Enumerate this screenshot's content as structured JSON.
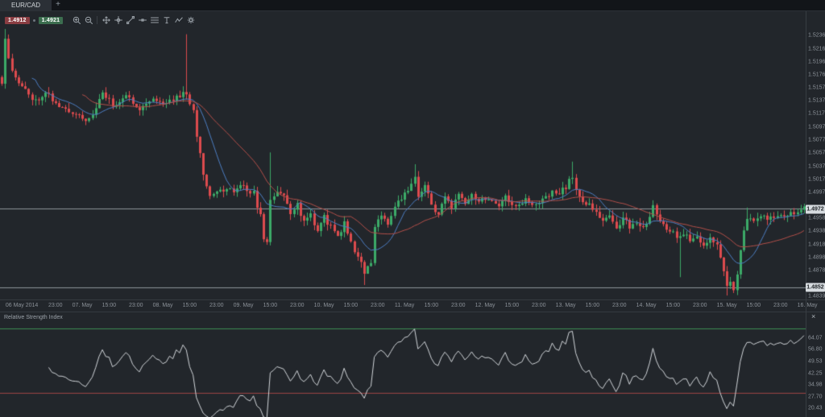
{
  "window": {
    "tab_label": "EUR/CAD",
    "new_tab_label": "+"
  },
  "toolbar": {
    "bid": "1.4912",
    "ask": "1.4921",
    "icons": [
      "zoom-in",
      "zoom-out",
      "|",
      "pan",
      "crosshair",
      "trendline",
      "horizontal-line",
      "fibonacci",
      "text-tool",
      "indicators",
      "settings"
    ]
  },
  "price_axis": {
    "labels": [
      "1.5236",
      "1.5216",
      "1.5196",
      "1.5176",
      "1.5157",
      "1.5137",
      "1.5117",
      "1.5097",
      "1.5077",
      "1.5057",
      "1.5037",
      "1.5017",
      "1.4997",
      "1.4958",
      "1.4938",
      "1.4918",
      "1.4898",
      "1.4878",
      "1.4839"
    ],
    "current_price_badge": "1.4972",
    "level_badge": "1.4852"
  },
  "time_axis": {
    "labels": [
      {
        "i": 6,
        "text": "06 May 2014"
      },
      {
        "i": 16,
        "text": "23:00"
      },
      {
        "i": 24,
        "text": "07. May"
      },
      {
        "i": 32,
        "text": "15:00"
      },
      {
        "i": 40,
        "text": "23:00"
      },
      {
        "i": 48,
        "text": "08. May"
      },
      {
        "i": 56,
        "text": "15:00"
      },
      {
        "i": 64,
        "text": "23:00"
      },
      {
        "i": 72,
        "text": "09. May"
      },
      {
        "i": 80,
        "text": "15:00"
      },
      {
        "i": 88,
        "text": "23:00"
      },
      {
        "i": 96,
        "text": "10. May"
      },
      {
        "i": 104,
        "text": "15:00"
      },
      {
        "i": 112,
        "text": "23:00"
      },
      {
        "i": 120,
        "text": "11. May"
      },
      {
        "i": 128,
        "text": "15:00"
      },
      {
        "i": 136,
        "text": "23:00"
      },
      {
        "i": 144,
        "text": "12. May"
      },
      {
        "i": 152,
        "text": "15:00"
      },
      {
        "i": 160,
        "text": "23:00"
      },
      {
        "i": 168,
        "text": "13. May"
      },
      {
        "i": 176,
        "text": "15:00"
      },
      {
        "i": 184,
        "text": "23:00"
      },
      {
        "i": 192,
        "text": "14. May"
      },
      {
        "i": 200,
        "text": "15:00"
      },
      {
        "i": 208,
        "text": "23:00"
      },
      {
        "i": 216,
        "text": "15. May"
      },
      {
        "i": 224,
        "text": "15:00"
      },
      {
        "i": 232,
        "text": "23:00"
      },
      {
        "i": 240,
        "text": "16. May"
      }
    ]
  },
  "rsi_panel": {
    "title": "Relative Strength Index",
    "close_label": "×",
    "axis_labels": [
      "64.07",
      "56.80",
      "49.53",
      "42.25",
      "34.98",
      "27.70",
      "20.43"
    ]
  },
  "chart_data": {
    "type": "candlestick",
    "symbol": "EUR/CAD",
    "candle_count": 240,
    "price_range": [
      1.4834,
      1.5273
    ],
    "seed": 11,
    "noise": 0.00045,
    "wick": 0.0009,
    "close_anchors": [
      [
        0,
        1.5165
      ],
      [
        1,
        1.5235
      ],
      [
        2,
        1.5205
      ],
      [
        3,
        1.5185
      ],
      [
        5,
        1.5162
      ],
      [
        8,
        1.5148
      ],
      [
        10,
        1.5136
      ],
      [
        13,
        1.5152
      ],
      [
        17,
        1.5126
      ],
      [
        22,
        1.5118
      ],
      [
        26,
        1.5106
      ],
      [
        30,
        1.5148
      ],
      [
        33,
        1.513
      ],
      [
        37,
        1.5144
      ],
      [
        41,
        1.5126
      ],
      [
        45,
        1.514
      ],
      [
        49,
        1.5132
      ],
      [
        52,
        1.5144
      ],
      [
        55,
        1.515
      ],
      [
        57,
        1.5118
      ],
      [
        58,
        1.5085
      ],
      [
        59,
        1.5056
      ],
      [
        60,
        1.5028
      ],
      [
        61,
        1.5006
      ],
      [
        62,
        1.4996
      ],
      [
        64,
        1.5
      ],
      [
        68,
        1.5
      ],
      [
        72,
        1.5006
      ],
      [
        75,
        1.4996
      ],
      [
        77,
        1.496
      ],
      [
        78,
        1.4928
      ],
      [
        79,
        1.492
      ],
      [
        80,
        1.4986
      ],
      [
        82,
        1.5
      ],
      [
        84,
        1.499
      ],
      [
        86,
        1.4966
      ],
      [
        88,
        1.498
      ],
      [
        90,
        1.495
      ],
      [
        92,
        1.4966
      ],
      [
        94,
        1.4936
      ],
      [
        96,
        1.496
      ],
      [
        98,
        1.4944
      ],
      [
        100,
        1.493
      ],
      [
        102,
        1.495
      ],
      [
        104,
        1.492
      ],
      [
        106,
        1.49
      ],
      [
        108,
        1.4876
      ],
      [
        110,
        1.489
      ],
      [
        111,
        1.494
      ],
      [
        113,
        1.4966
      ],
      [
        115,
        1.495
      ],
      [
        117,
        1.4976
      ],
      [
        119,
        1.499
      ],
      [
        121,
        1.4996
      ],
      [
        123,
        1.502
      ],
      [
        124,
        1.499
      ],
      [
        126,
        1.501
      ],
      [
        128,
        1.4976
      ],
      [
        130,
        1.4964
      ],
      [
        132,
        1.499
      ],
      [
        134,
        1.497
      ],
      [
        136,
        1.4996
      ],
      [
        138,
        1.4984
      ],
      [
        140,
        1.4996
      ],
      [
        142,
        1.4984
      ],
      [
        144,
        1.499
      ],
      [
        146,
        1.4984
      ],
      [
        148,
        1.498
      ],
      [
        150,
        1.499
      ],
      [
        152,
        1.498
      ],
      [
        154,
        1.4976
      ],
      [
        156,
        1.4986
      ],
      [
        158,
        1.4976
      ],
      [
        160,
        1.498
      ],
      [
        162,
        1.499
      ],
      [
        164,
        1.5
      ],
      [
        166,
        1.4994
      ],
      [
        168,
        1.5006
      ],
      [
        170,
        1.5022
      ],
      [
        171,
        1.5
      ],
      [
        173,
        1.4986
      ],
      [
        175,
        1.4976
      ],
      [
        177,
        1.4964
      ],
      [
        179,
        1.4954
      ],
      [
        181,
        1.496
      ],
      [
        183,
        1.4946
      ],
      [
        185,
        1.4956
      ],
      [
        187,
        1.4946
      ],
      [
        189,
        1.495
      ],
      [
        191,
        1.494
      ],
      [
        193,
        1.4958
      ],
      [
        194,
        1.4975
      ],
      [
        195,
        1.496
      ],
      [
        197,
        1.4946
      ],
      [
        199,
        1.494
      ],
      [
        201,
        1.493
      ],
      [
        203,
        1.4936
      ],
      [
        205,
        1.4924
      ],
      [
        207,
        1.493
      ],
      [
        209,
        1.492
      ],
      [
        211,
        1.4926
      ],
      [
        213,
        1.4914
      ],
      [
        214,
        1.4896
      ],
      [
        215,
        1.4876
      ],
      [
        216,
        1.4856
      ],
      [
        217,
        1.4862
      ],
      [
        218,
        1.485
      ],
      [
        219,
        1.4876
      ],
      [
        220,
        1.4906
      ],
      [
        221,
        1.4936
      ],
      [
        222,
        1.496
      ],
      [
        224,
        1.495
      ],
      [
        226,
        1.4962
      ],
      [
        228,
        1.4954
      ],
      [
        230,
        1.4962
      ],
      [
        232,
        1.4958
      ],
      [
        234,
        1.4966
      ],
      [
        236,
        1.4968
      ],
      [
        239,
        1.4972
      ]
    ],
    "spikes": [
      {
        "i": 1,
        "high": 1.5246
      },
      {
        "i": 55,
        "high": 1.5238
      },
      {
        "i": 80,
        "high": 1.5058
      },
      {
        "i": 108,
        "low": 1.4856
      },
      {
        "i": 123,
        "high": 1.504
      },
      {
        "i": 170,
        "high": 1.5044
      },
      {
        "i": 194,
        "high": 1.498
      },
      {
        "i": 202,
        "low": 1.4868
      },
      {
        "i": 216,
        "low": 1.484
      },
      {
        "i": 222,
        "high": 1.4974
      }
    ],
    "overlays": [
      {
        "type": "sma",
        "period": 10,
        "color": "#4d7fc4"
      },
      {
        "type": "sma",
        "period": 25,
        "color": "#b5504a"
      }
    ],
    "hlines": [
      {
        "price": 1.4972
      },
      {
        "price": 1.4852
      }
    ],
    "indicator": {
      "type": "rsi",
      "period": 14,
      "range": [
        15,
        80
      ],
      "upper": 70,
      "lower": 30
    }
  },
  "colors": {
    "candle_up": "#3cab68",
    "candle_down": "#dd4b4e",
    "ma_fast": "#4d7fc4",
    "ma_slow": "#b5504a",
    "hline": "#8e959b",
    "rsi_line": "#d2d6da",
    "rsi_upper_line": "#3e8e55",
    "rsi_lower_line": "#9e4444",
    "axis_text": "#8b9198",
    "bid_badge": "#8a3d42",
    "ask_badge": "#3c6e4f",
    "current_badge_bg": "#d6dbdf",
    "current_badge_text": "#1d2125"
  }
}
